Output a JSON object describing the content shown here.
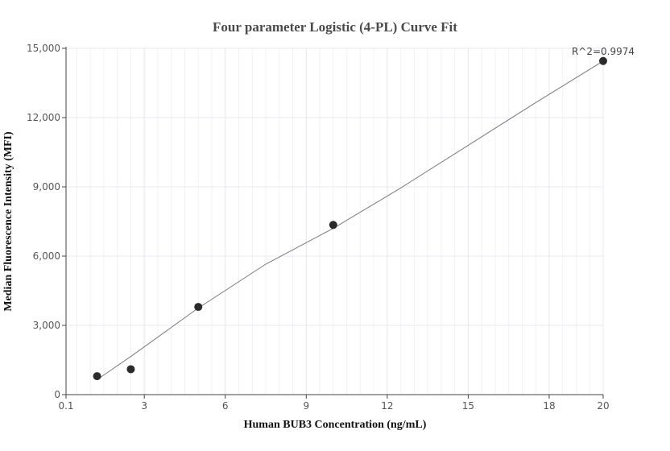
{
  "chart_data": {
    "type": "scatter",
    "title": "Four parameter Logistic (4-PL) Curve Fit",
    "xlabel": "Human BUB3 Concentration (ng/mL)",
    "ylabel": "Median Fluorescence Intensity (MFI)",
    "xlim": [
      0.1,
      20
    ],
    "ylim": [
      0,
      15000
    ],
    "x_ticks": [
      0.1,
      3,
      6,
      9,
      12,
      15,
      18,
      20
    ],
    "x_tick_labels": [
      "0.1",
      "3",
      "6",
      "9",
      "12",
      "15",
      "18",
      "20"
    ],
    "y_ticks": [
      0,
      3000,
      6000,
      9000,
      12000,
      15000
    ],
    "y_tick_labels": [
      "0",
      "3,000",
      "6,000",
      "9,000",
      "12,000",
      "15,000"
    ],
    "grid": true,
    "points": [
      {
        "x": 1.25,
        "y": 800
      },
      {
        "x": 2.5,
        "y": 1100
      },
      {
        "x": 5,
        "y": 3800
      },
      {
        "x": 10,
        "y": 7350
      },
      {
        "x": 20,
        "y": 14450
      }
    ],
    "fit_curve": {
      "x": [
        1.25,
        2.5,
        5,
        7.5,
        10,
        12.5,
        15,
        17.5,
        20
      ],
      "y": [
        650,
        1650,
        3750,
        5650,
        7200,
        8950,
        10800,
        12650,
        14450
      ]
    },
    "annotation": "R^2=0.9974",
    "colors": {
      "points": "#2b2b2b",
      "curve": "#7a7a7a",
      "grid": "#e8e8f0",
      "axis": "#444444"
    }
  }
}
